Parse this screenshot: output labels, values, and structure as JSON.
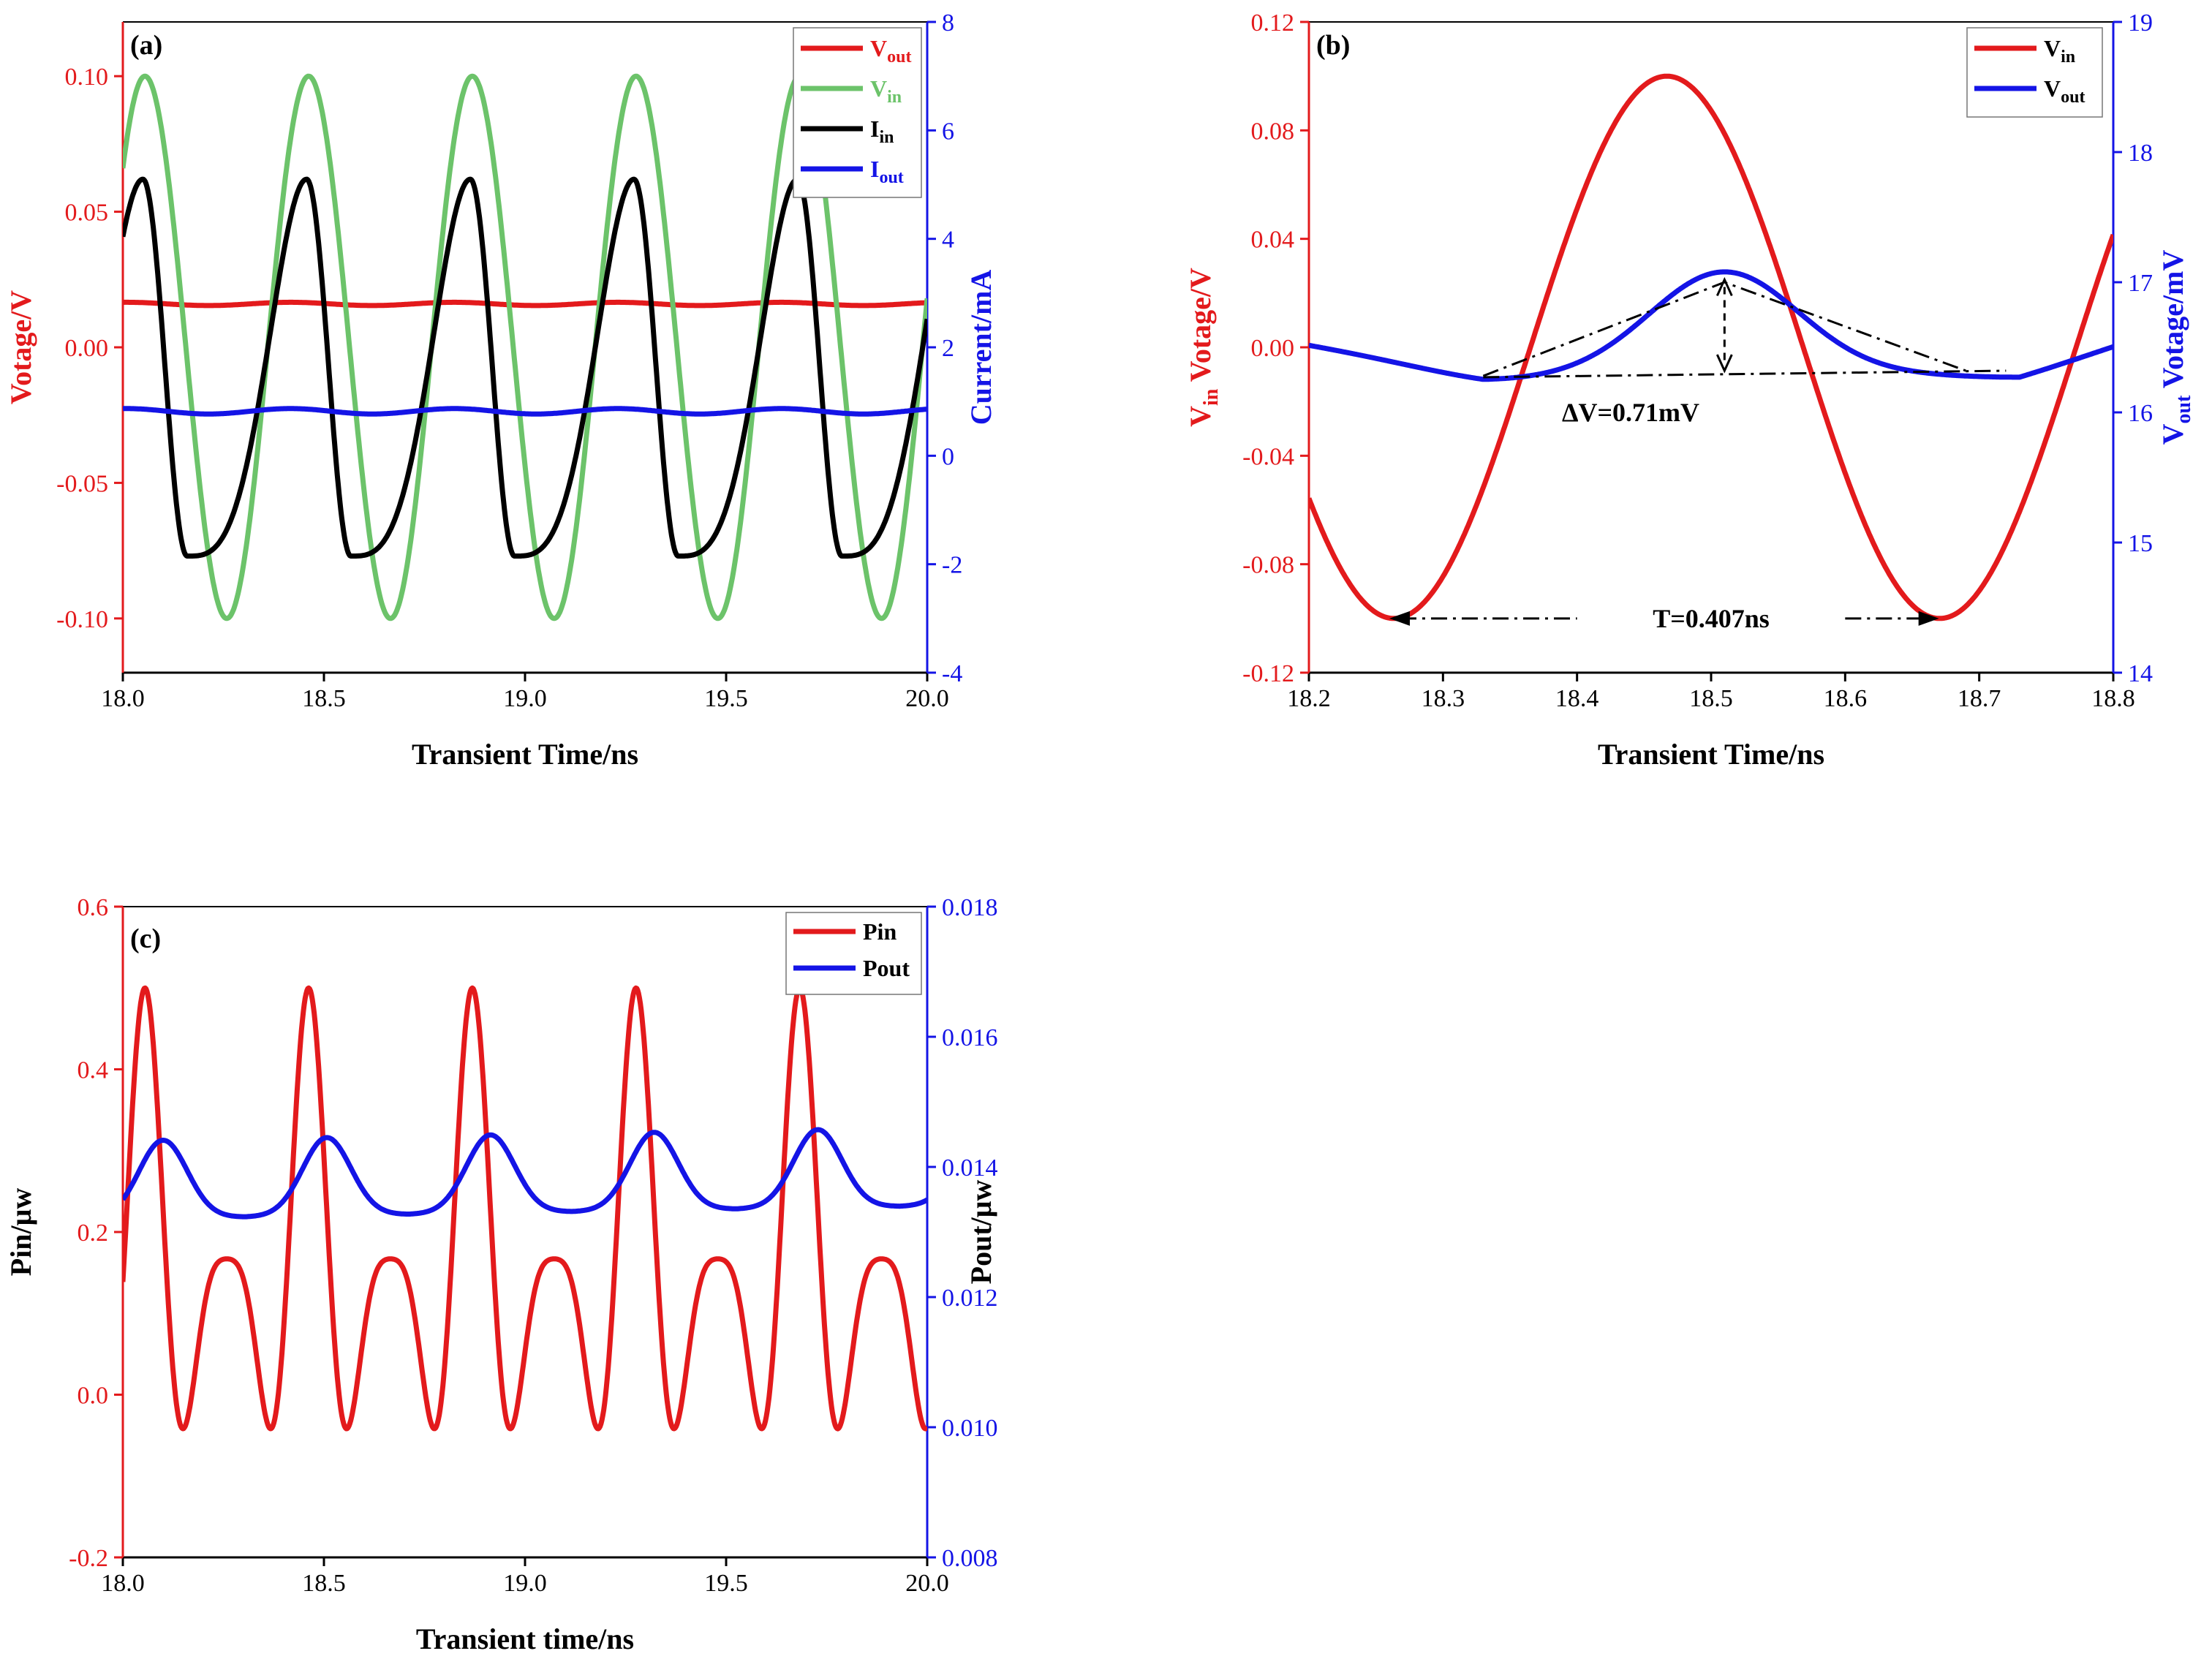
{
  "colors": {
    "red": "#e31a1c",
    "green": "#6cc36a",
    "black": "#000000",
    "blue": "#1414e6"
  },
  "chart_data": [
    {
      "panel": "(a)",
      "type": "line",
      "xlabel": "Transient Time/ns",
      "ylabel_left": "Votage/V",
      "ylabel_right": "Current/mA",
      "xlim": [
        18.0,
        20.0
      ],
      "ylim_left": [
        -0.12,
        0.12
      ],
      "ylim_right": [
        -4,
        8
      ],
      "xticks": [
        "18.0",
        "18.5",
        "19.0",
        "19.5",
        "20.0"
      ],
      "yticks_left": [
        "-0.10",
        "-0.05",
        "0.00",
        "0.05",
        "0.10"
      ],
      "yticks_right": [
        "-4",
        "-2",
        "0",
        "2",
        "4",
        "6",
        "8"
      ],
      "legend": [
        {
          "name": "V",
          "sub": "out",
          "color": "red"
        },
        {
          "name": "V",
          "sub": "in",
          "color": "green"
        },
        {
          "name": "I",
          "sub": "in",
          "color": "black"
        },
        {
          "name": "I",
          "sub": "out",
          "color": "blue"
        }
      ],
      "series": [
        {
          "name": "Vout",
          "axis": "left",
          "color": "red",
          "model": {
            "kind": "const",
            "level": 0.016,
            "amp": 0.0006,
            "period": 0.407
          }
        },
        {
          "name": "Vin",
          "axis": "left",
          "color": "green",
          "model": {
            "kind": "sine",
            "amp": 0.1,
            "period": 0.407,
            "peak": 18.055
          }
        },
        {
          "name": "Iin",
          "axis": "right",
          "color": "black",
          "model": {
            "kind": "sawpulse",
            "period": 0.407,
            "peak_x": 18.05,
            "peak": 5.1,
            "min_x": 18.16,
            "min": -1.85
          }
        },
        {
          "name": "Iout",
          "axis": "right",
          "color": "blue",
          "model": {
            "kind": "const",
            "level": 0.82,
            "amp": 0.05,
            "period": 0.407
          }
        }
      ]
    },
    {
      "panel": "(b)",
      "type": "line",
      "xlabel": "Transient Time/ns",
      "ylabel_left_pre": "V",
      "ylabel_left_sub": "in",
      "ylabel_left_post": " Votage/V",
      "ylabel_right_pre": "V",
      "ylabel_right_sub": "out",
      "ylabel_right_post": " Votage/mV",
      "xlim": [
        18.2,
        18.8
      ],
      "ylim_left": [
        -0.12,
        0.12
      ],
      "ylim_right": [
        14,
        19
      ],
      "xticks": [
        "18.2",
        "18.3",
        "18.4",
        "18.5",
        "18.6",
        "18.7",
        "18.8"
      ],
      "yticks_left": [
        "-0.12",
        "-0.08",
        "-0.04",
        "0.00",
        "0.04",
        "0.08",
        "0.12"
      ],
      "yticks_right": [
        "14",
        "15",
        "16",
        "17",
        "18",
        "19"
      ],
      "legend": [
        {
          "name": "V",
          "sub": "in",
          "color": "red"
        },
        {
          "name": "V",
          "sub": "out",
          "color": "blue"
        }
      ],
      "series": [
        {
          "name": "Vin",
          "axis": "left",
          "color": "red",
          "model": {
            "kind": "sine",
            "amp": 0.1,
            "period": 0.407,
            "peak": 18.467
          }
        },
        {
          "name": "Vout",
          "axis": "right",
          "color": "blue",
          "model": {
            "kind": "bump",
            "base": 16.3,
            "start": 16.52,
            "center": 18.51,
            "height": 0.73,
            "width": 0.055,
            "end": 16.52,
            "min1_x": 18.33,
            "min2_x": 18.73
          }
        }
      ],
      "annotations": [
        {
          "text": "ΔV=0.71mV",
          "x": 18.51,
          "y_right": 16.02
        },
        {
          "text": "T=0.407ns",
          "x": 18.46,
          "y_left": -0.1
        }
      ],
      "dV_value": "0.71mV"
    },
    {
      "panel": "(c)",
      "type": "line",
      "xlabel": "Transient time/ns",
      "ylabel_left": "Pin/μw",
      "ylabel_right": "Pout/μw",
      "xlim": [
        18.0,
        20.0
      ],
      "ylim_left": [
        -0.2,
        0.6
      ],
      "ylim_right": [
        0.008,
        0.018
      ],
      "xticks": [
        "18.0",
        "18.5",
        "19.0",
        "19.5",
        "20.0"
      ],
      "yticks_left": [
        "-0.2",
        "0.0",
        "0.2",
        "0.4",
        "0.6"
      ],
      "yticks_right": [
        "0.008",
        "0.010",
        "0.012",
        "0.014",
        "0.016",
        "0.018"
      ],
      "legend": [
        {
          "name": "Pin",
          "sub": "",
          "color": "red"
        },
        {
          "name": "Pout",
          "sub": "",
          "color": "blue"
        }
      ],
      "series": [
        {
          "name": "Pin",
          "axis": "left",
          "color": "red",
          "model": {
            "kind": "product",
            "period": 0.407,
            "peak_x": 18.055
          }
        },
        {
          "name": "Pout",
          "axis": "right",
          "color": "blue",
          "model": {
            "kind": "periodic_bump",
            "period": 0.407,
            "peak_x": 18.1,
            "base": 0.0132,
            "height": 0.0012,
            "drift": 0.0002
          }
        }
      ]
    }
  ]
}
